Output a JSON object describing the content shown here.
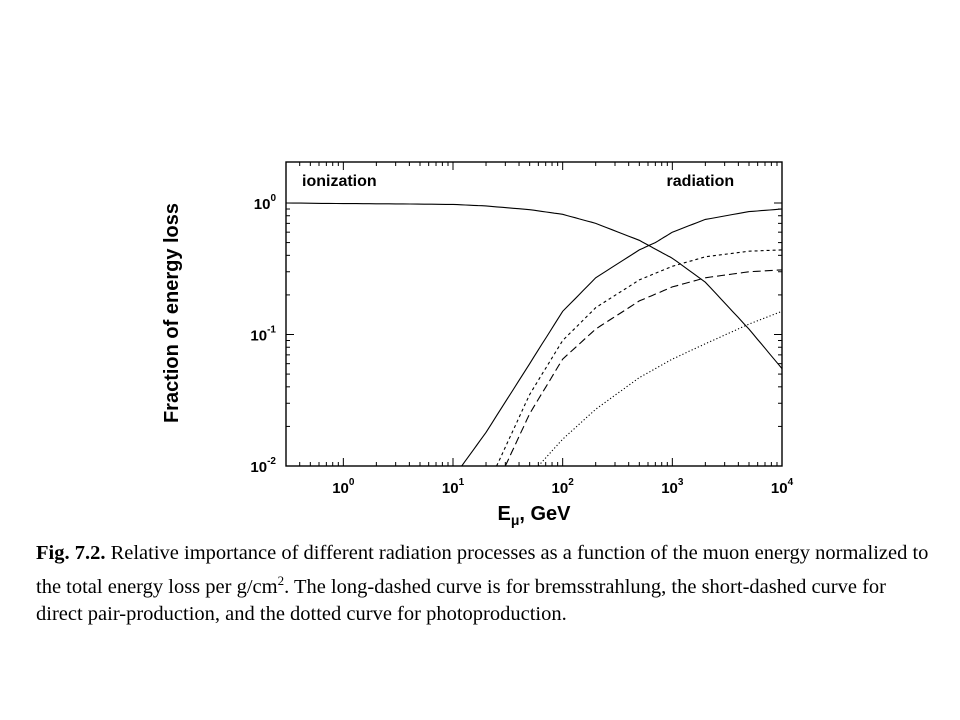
{
  "chart_data": {
    "type": "line",
    "xscale": "log",
    "yscale": "log",
    "xlim": [
      0.3,
      10000
    ],
    "ylim": [
      0.01,
      1.0
    ],
    "xlabel": "E_μ, GeV",
    "xlabel_main": "E",
    "xlabel_sub": "μ",
    "xlabel_rest": ", GeV",
    "ylabel": "Fraction of energy loss",
    "x_ticks": [
      {
        "value": 1,
        "base": "10",
        "exp": "0"
      },
      {
        "value": 10,
        "base": "10",
        "exp": "1"
      },
      {
        "value": 100,
        "base": "10",
        "exp": "2"
      },
      {
        "value": 1000,
        "base": "10",
        "exp": "3"
      },
      {
        "value": 10000,
        "base": "10",
        "exp": "4"
      }
    ],
    "y_ticks": [
      {
        "value": 1,
        "base": "10",
        "exp": "0"
      },
      {
        "value": 0.1,
        "base": "10",
        "exp": "-1"
      },
      {
        "value": 0.01,
        "base": "10",
        "exp": "-2"
      }
    ],
    "grid": false,
    "annotations": [
      {
        "text": "ionization",
        "x": 0.42,
        "y": 1.35
      },
      {
        "text": "radiation",
        "x": 1800,
        "y": 1.35
      }
    ],
    "series": [
      {
        "style": "solid",
        "x": [
          0.3,
          1,
          3,
          10,
          20,
          50,
          100,
          200,
          500,
          800,
          1000,
          2000,
          5000,
          10000
        ],
        "y": [
          1.0,
          0.99,
          0.985,
          0.975,
          0.95,
          0.89,
          0.82,
          0.7,
          0.52,
          0.42,
          0.38,
          0.25,
          0.11,
          0.055
        ]
      },
      {
        "style": "solid",
        "x": [
          12,
          20,
          50,
          100,
          200,
          500,
          700,
          1000,
          2000,
          5000,
          10000
        ],
        "y": [
          0.01,
          0.018,
          0.06,
          0.15,
          0.27,
          0.44,
          0.5,
          0.6,
          0.75,
          0.86,
          0.9
        ]
      },
      {
        "style": "short-dashed",
        "x": [
          25,
          50,
          100,
          200,
          500,
          1000,
          2000,
          5000,
          10000
        ],
        "y": [
          0.01,
          0.035,
          0.09,
          0.16,
          0.26,
          0.33,
          0.39,
          0.43,
          0.44
        ]
      },
      {
        "style": "long-dashed",
        "x": [
          30,
          50,
          100,
          200,
          500,
          1000,
          2000,
          5000,
          10000
        ],
        "y": [
          0.01,
          0.025,
          0.065,
          0.11,
          0.18,
          0.23,
          0.27,
          0.3,
          0.31
        ]
      },
      {
        "style": "dotted",
        "x": [
          60,
          100,
          200,
          500,
          1000,
          2000,
          5000,
          10000
        ],
        "y": [
          0.01,
          0.016,
          0.027,
          0.047,
          0.065,
          0.085,
          0.12,
          0.15
        ]
      }
    ]
  },
  "caption": {
    "label": "Fig. 7.2.",
    "text_before_sup": " Relative importance of different radiation processes as a function of the muon energy normalized to the total energy loss per g/cm",
    "sup": "2",
    "text_after_sup": ". The long-dashed curve is for bremsstrahlung, the short-dashed curve for direct pair-production, and the dotted curve for photoproduction."
  }
}
